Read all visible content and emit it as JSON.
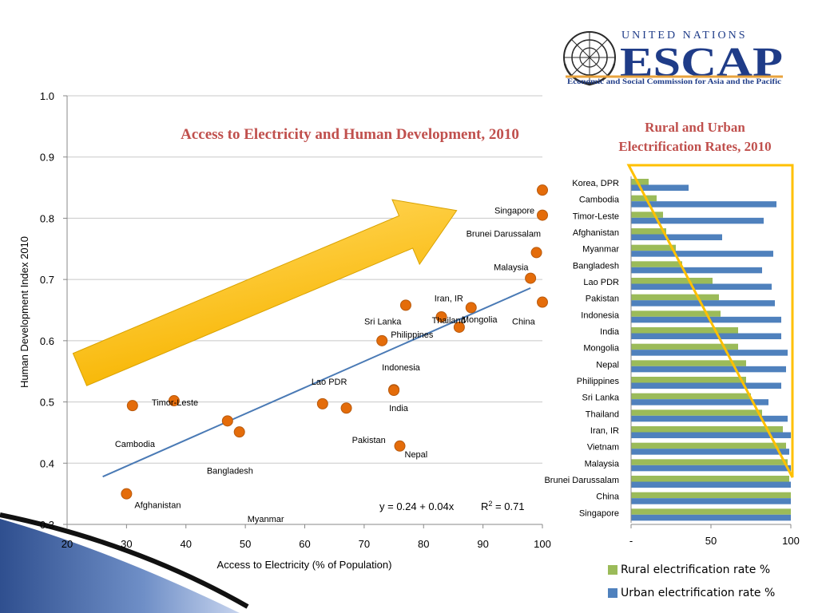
{
  "logo": {
    "org": "UNITED NATIONS",
    "acronym": "ESCAP",
    "subtitle": "Economic and Social Commission for Asia and the Pacific",
    "colors": {
      "navy": "#1f3c88",
      "gold": "#e8a33d"
    }
  },
  "colors": {
    "rural": "#9bbb59",
    "urban": "#4f81bd",
    "markers": "#e46c0a",
    "title": "#c0504d",
    "arrow": "#ffc000",
    "trendline": "#4a7ab5"
  },
  "chart_data": [
    {
      "type": "scatter",
      "title": "Access to Electricity and Human Development, 2010",
      "xlabel": "Access to Electricity (% of Population)",
      "ylabel": "Human Development Index 2010",
      "xlim": [
        20,
        100
      ],
      "ylim": [
        0.3,
        1.0
      ],
      "xticks": [
        20,
        30,
        40,
        50,
        60,
        70,
        80,
        90,
        100
      ],
      "yticks": [
        "0.3",
        "0.4",
        "0.5",
        "0.6",
        "0.7",
        "0.8",
        "0.9",
        "1.0"
      ],
      "grid": "horizontal",
      "points": [
        {
          "name": "Afghanistan",
          "x": 30,
          "y": 0.35
        },
        {
          "name": "Cambodia",
          "x": 31,
          "y": 0.494
        },
        {
          "name": "Timor-Leste",
          "x": 38,
          "y": 0.502
        },
        {
          "name": "Bangladesh",
          "x": 47,
          "y": 0.469
        },
        {
          "name": "Myanmar",
          "x": 49,
          "y": 0.451
        },
        {
          "name": "Lao PDR",
          "x": 63,
          "y": 0.497
        },
        {
          "name": "Pakistan",
          "x": 67,
          "y": 0.49
        },
        {
          "name": "Sri Lanka",
          "x": 77,
          "y": 0.658
        },
        {
          "name": "Philippines",
          "x": 73,
          "y": 0.6
        },
        {
          "name": "Indonesia",
          "x": 75,
          "y": 0.52
        },
        {
          "name": "India",
          "x": 75,
          "y": 0.519
        },
        {
          "name": "Nepal",
          "x": 76,
          "y": 0.428
        },
        {
          "name": "Thailand",
          "x": 83,
          "y": 0.639
        },
        {
          "name": "Mongolia",
          "x": 86,
          "y": 0.622
        },
        {
          "name": "Iran, IR",
          "x": 88,
          "y": 0.654
        },
        {
          "name": "Malaysia",
          "x": 98,
          "y": 0.702
        },
        {
          "name": "Brunei Darussalam",
          "x": 99,
          "y": 0.744
        },
        {
          "name": "Singapore",
          "x": 100,
          "y": 0.805
        },
        {
          "name": "China",
          "x": 100,
          "y": 0.663
        },
        {
          "name": "",
          "x": 100,
          "y": 0.846
        }
      ],
      "trendline": {
        "x0": 26,
        "y0": 0.378,
        "x1": 98,
        "y1": 0.686
      },
      "equation": "y = 0.24 + 0.04x",
      "r2_prefix": "R",
      "r2_sup": "2",
      "r2_suffix": " = 0.71"
    },
    {
      "type": "bar",
      "orientation": "horizontal",
      "title_lines": [
        "Rural and Urban",
        "Electrification Rates, 2010"
      ],
      "xlim": [
        0,
        100
      ],
      "xticks": [
        "-",
        "50",
        "100"
      ],
      "categories": [
        "Korea, DPR",
        "Cambodia",
        "Timor-Leste",
        "Afghanistan",
        "Myanmar",
        "Bangladesh",
        "Lao PDR",
        "Pakistan",
        "Indonesia",
        "India",
        "Mongolia",
        "Nepal",
        "Philippines",
        "Sri Lanka",
        "Thailand",
        "Iran, IR",
        "Vietnam",
        "Malaysia",
        "Brunei Darussalam",
        "China",
        "Singapore"
      ],
      "series": [
        {
          "name": "Rural electrification rate %",
          "values": [
            11,
            16,
            20,
            22,
            28,
            32,
            51,
            55,
            56,
            67,
            67,
            72,
            72,
            75,
            82,
            95,
            97,
            98,
            99,
            100,
            100
          ]
        },
        {
          "name": "Urban electrification rate %",
          "values": [
            36,
            91,
            83,
            57,
            89,
            82,
            88,
            90,
            94,
            94,
            98,
            97,
            94,
            86,
            98,
            100,
            99,
            100,
            100,
            100,
            100
          ]
        }
      ],
      "legend": "bottom"
    }
  ]
}
